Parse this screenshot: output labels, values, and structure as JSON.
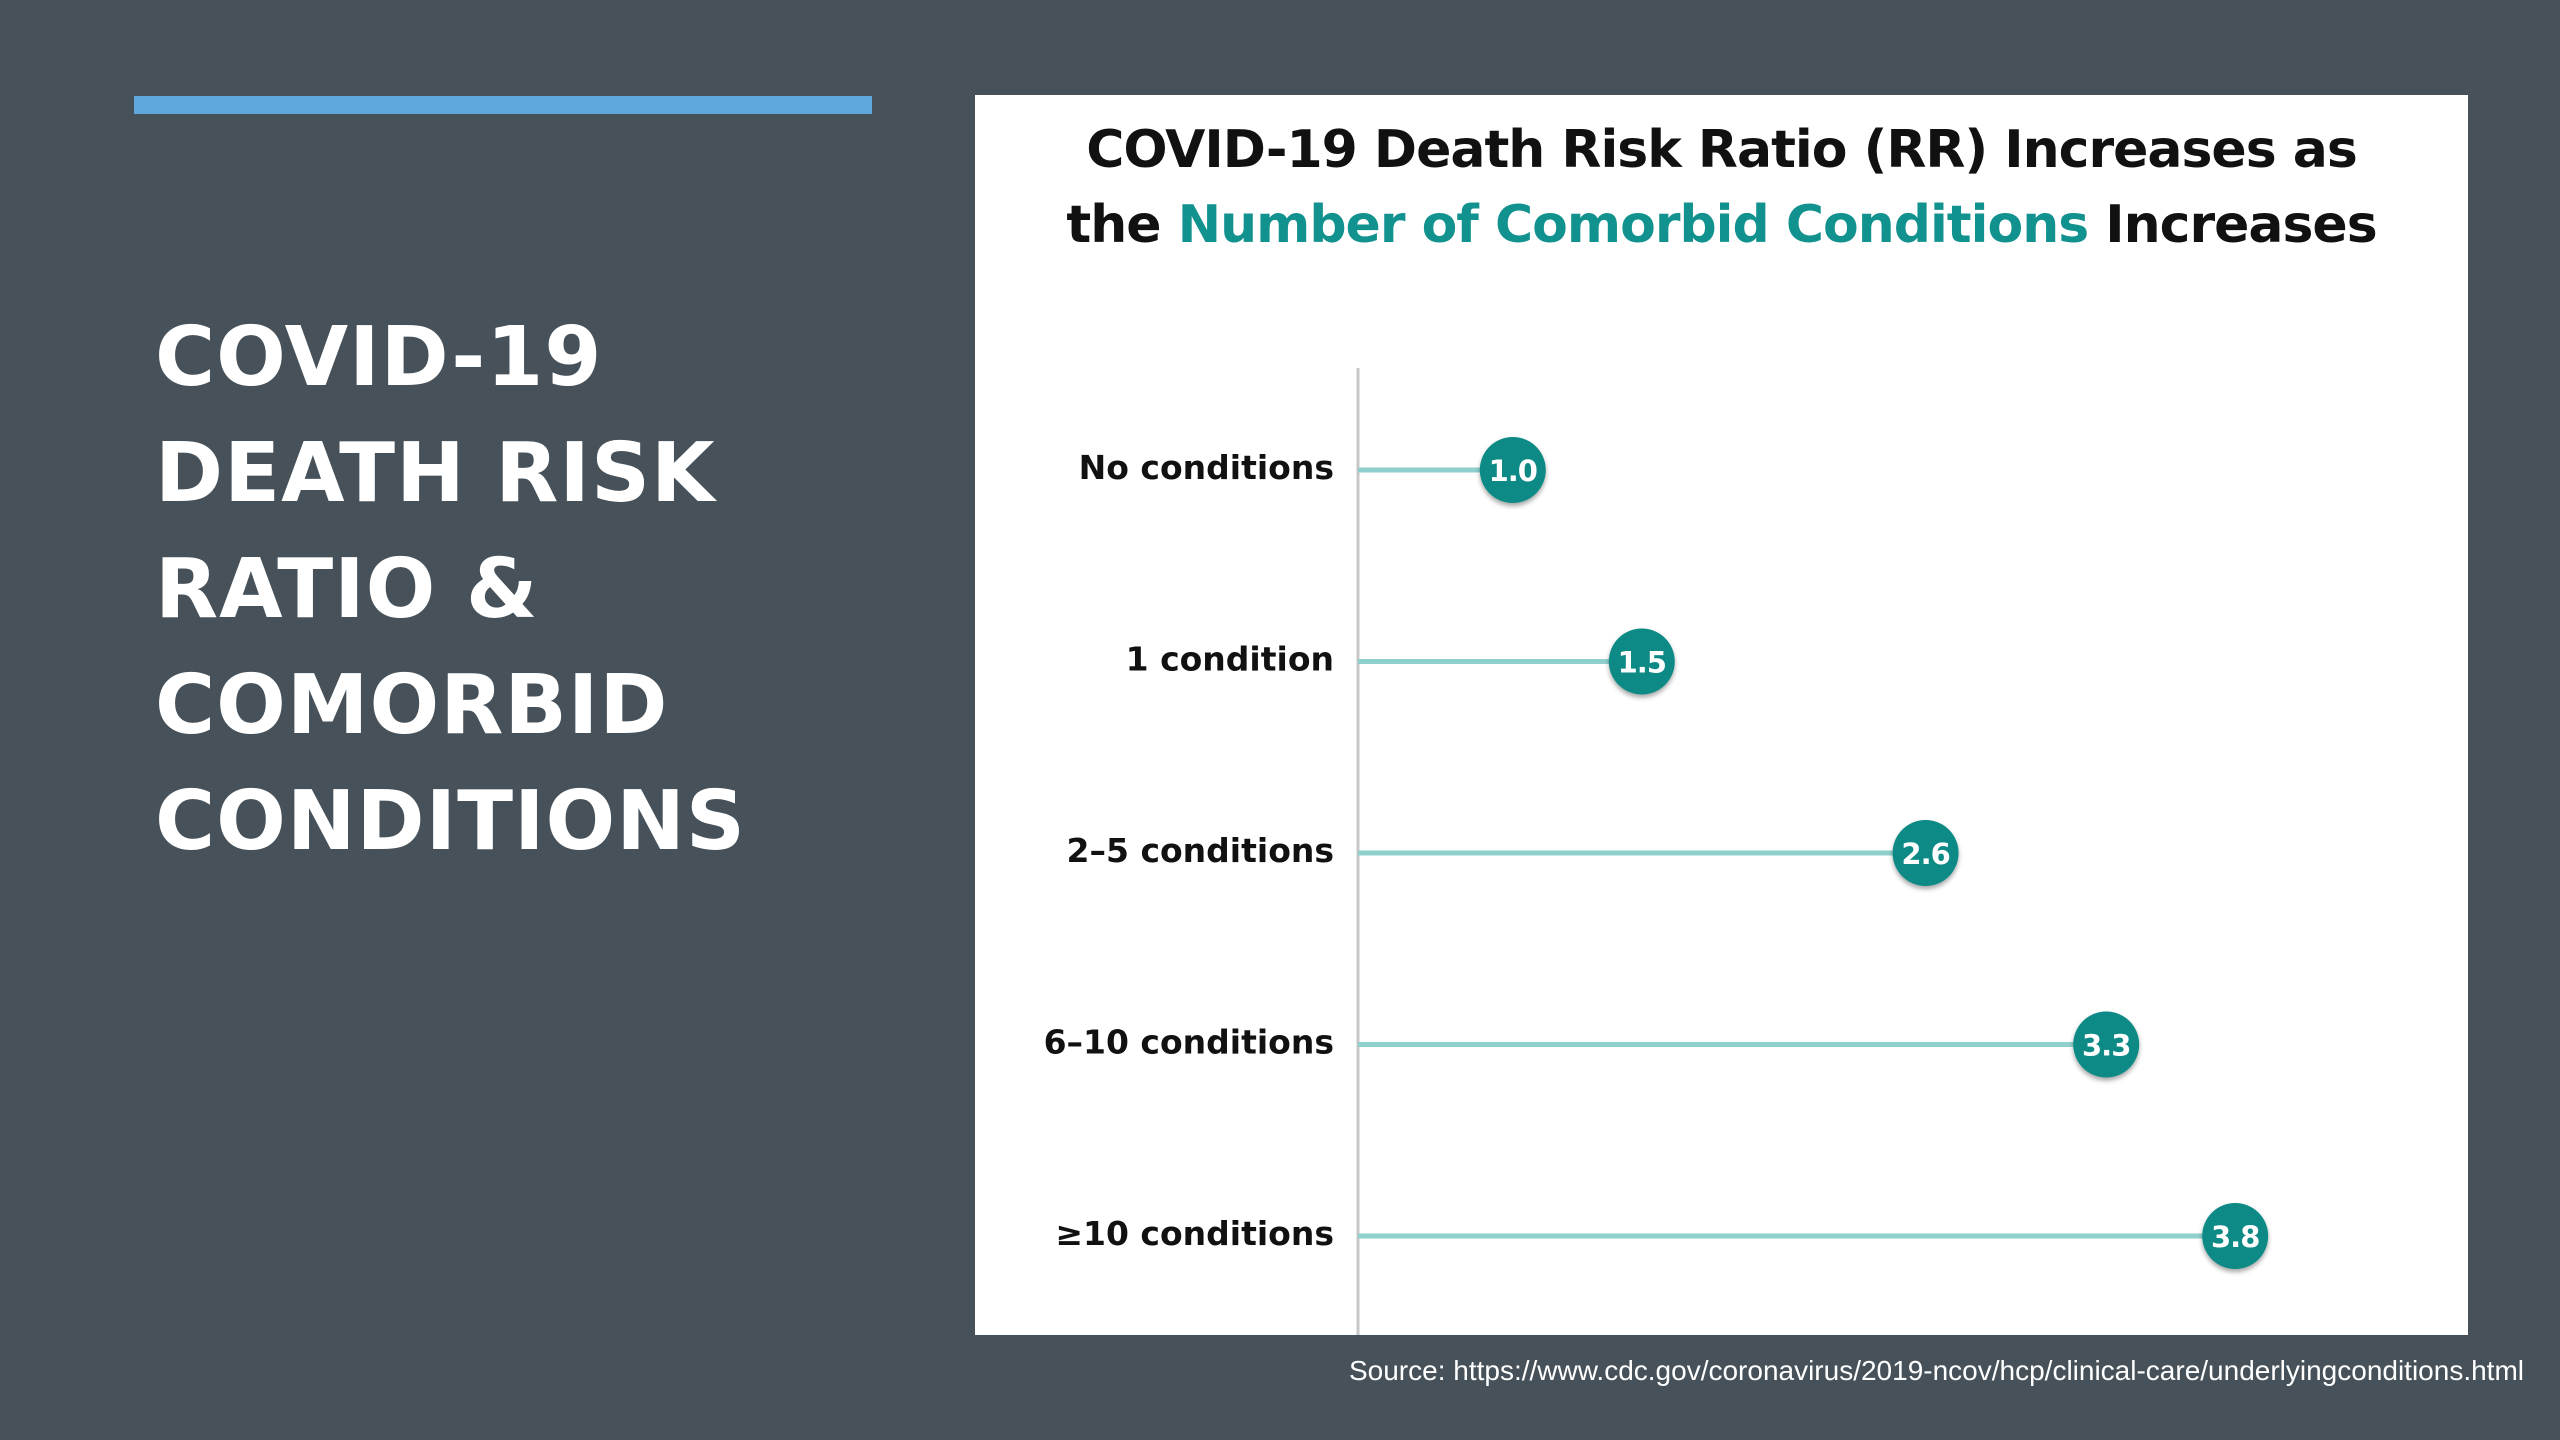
{
  "slide": {
    "title_lines": [
      "COVID-19",
      "DEATH RISK",
      "RATIO &",
      "COMORBID",
      "CONDITIONS"
    ],
    "source": "Source: https://www.cdc.gov/coronavirus/2019-ncov/hcp/clinical-care/underlyingconditions.html"
  },
  "colors": {
    "background": "#465159",
    "accent_bar": "#5fa8dc",
    "title_highlight": "#12928f",
    "marker": "#0f8a85",
    "stem": "#8fcfcc",
    "axis": "#c7c7c7"
  },
  "chart_data": {
    "type": "lollipop",
    "title_parts": [
      {
        "text": "COVID-19 Death Risk Ratio (RR) Increases as",
        "highlight": false,
        "line_break_after": true
      },
      {
        "text": "the ",
        "highlight": false,
        "line_break_after": false
      },
      {
        "text": "Number of Comorbid Conditions",
        "highlight": true,
        "line_break_after": false
      },
      {
        "text": " Increases",
        "highlight": false,
        "line_break_after": false
      }
    ],
    "categories": [
      "No conditions",
      "1 condition",
      "2–5 conditions",
      "6–10 conditions",
      "≥10 conditions"
    ],
    "values": [
      1.0,
      1.5,
      2.6,
      3.3,
      3.8
    ],
    "value_labels": [
      "1.0",
      "1.5",
      "2.6",
      "3.3",
      "3.8"
    ],
    "xlim": [
      0.0,
      4.0
    ],
    "grid": false,
    "legend": "none"
  }
}
